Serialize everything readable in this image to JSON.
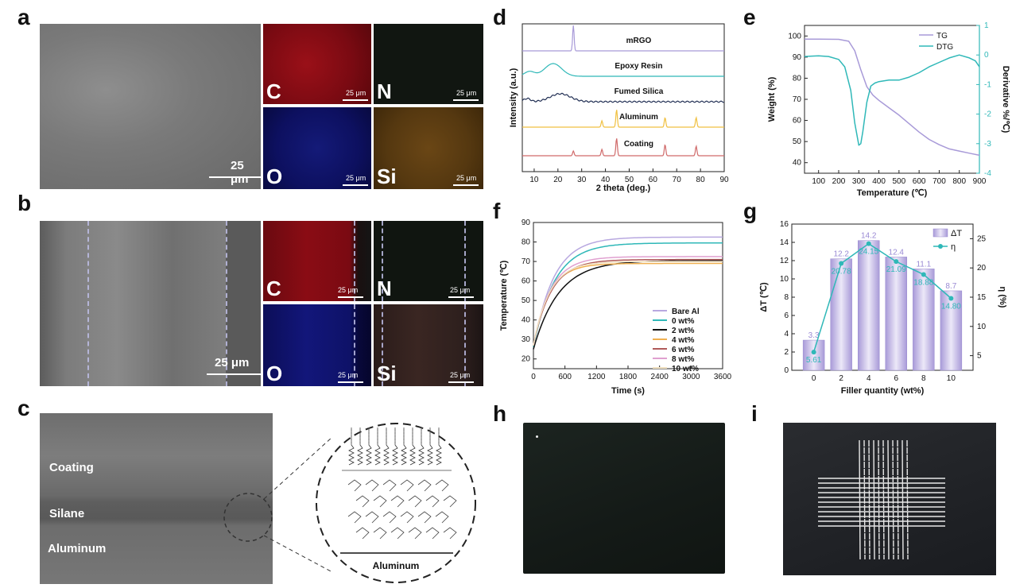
{
  "panel_labels": {
    "a": "a",
    "b": "b",
    "c": "c",
    "d": "d",
    "e": "e",
    "f": "f",
    "g": "g",
    "h": "h",
    "i": "i"
  },
  "colors": {
    "c_map": "#8a0a14",
    "n_map": "#0e140e",
    "o_map": "#0d1060",
    "si_map": "#5a3a12",
    "si_map_b": "#2a1c1a",
    "accent_teal": "#2fb8b8",
    "accent_purple": "#a89ad8"
  },
  "panel_a": {
    "scalebar": "25 μm",
    "maps": [
      {
        "element": "C",
        "scalebar": "25 μm"
      },
      {
        "element": "N",
        "scalebar": "25 μm"
      },
      {
        "element": "O",
        "scalebar": "25 μm"
      },
      {
        "element": "Si",
        "scalebar": "25 μm"
      }
    ]
  },
  "panel_b": {
    "scalebar": "25 μm",
    "maps": [
      {
        "element": "C",
        "scalebar": "25 μm"
      },
      {
        "element": "N",
        "scalebar": "25 μm"
      },
      {
        "element": "O",
        "scalebar": "25 μm"
      },
      {
        "element": "Si",
        "scalebar": "25 μm"
      }
    ]
  },
  "panel_c": {
    "layers": [
      "Coating",
      "Silane",
      "Aluminum"
    ],
    "schematic_label": "Aluminum"
  },
  "chart_data": [
    {
      "panel": "d",
      "type": "line",
      "xlabel": "2 theta (deg.)",
      "ylabel": "Intensity (a.u.)",
      "xlim": [
        5,
        90
      ],
      "xticks": [
        10,
        20,
        30,
        40,
        50,
        60,
        70,
        80,
        90
      ],
      "series": [
        {
          "name": "mRGO",
          "color": "#a89ad8",
          "peaks": [
            26.5
          ]
        },
        {
          "name": "Epoxy Resin",
          "color": "#2fb8b8",
          "peaks": []
        },
        {
          "name": "Fumed Silica",
          "color": "#1f2d52",
          "peaks": []
        },
        {
          "name": "Aluminum",
          "color": "#f0c040",
          "peaks": [
            38.5,
            44.7,
            65.1,
            78.2
          ]
        },
        {
          "name": "Coating",
          "color": "#d06a6a",
          "peaks": [
            26.5,
            38.5,
            44.7,
            65.1,
            78.2
          ]
        }
      ]
    },
    {
      "panel": "e",
      "type": "line",
      "xlabel": "Temperature (℃)",
      "ylabel": "Weight (%)",
      "y2label": "Derivative %/℃)",
      "xlim": [
        30,
        900
      ],
      "ylim": [
        35,
        105
      ],
      "y2lim": [
        -4,
        1
      ],
      "xticks": [
        100,
        200,
        300,
        400,
        500,
        600,
        700,
        800,
        900
      ],
      "yticks": [
        40,
        50,
        60,
        70,
        80,
        90,
        100
      ],
      "y2ticks": [
        -4,
        -3,
        -2,
        -1,
        0,
        1
      ],
      "series": [
        {
          "name": "TG",
          "axis": "left",
          "color": "#a89ad8",
          "x": [
            30,
            100,
            200,
            250,
            280,
            310,
            340,
            370,
            400,
            450,
            500,
            550,
            600,
            650,
            700,
            750,
            800,
            850,
            900
          ],
          "y": [
            98.5,
            98.5,
            98.4,
            97.5,
            93,
            84,
            76,
            72,
            69.5,
            66,
            62.5,
            58.5,
            54.5,
            51,
            48.5,
            46.5,
            45.5,
            44.5,
            43.5
          ]
        },
        {
          "name": "DTG",
          "axis": "right",
          "color": "#2fb8b8",
          "x": [
            30,
            100,
            150,
            200,
            230,
            260,
            280,
            300,
            310,
            320,
            340,
            360,
            380,
            400,
            450,
            500,
            550,
            600,
            650,
            700,
            750,
            800,
            850,
            880,
            900
          ],
          "y": [
            -0.05,
            -0.03,
            -0.05,
            -0.15,
            -0.4,
            -1.2,
            -2.3,
            -3.05,
            -3.0,
            -2.6,
            -1.6,
            -1.05,
            -0.95,
            -0.9,
            -0.85,
            -0.85,
            -0.75,
            -0.6,
            -0.4,
            -0.25,
            -0.1,
            0.0,
            -0.1,
            -0.2,
            -0.4
          ]
        }
      ]
    },
    {
      "panel": "f",
      "type": "line",
      "xlabel": "Time (s)",
      "ylabel": "Temperature (℃)",
      "xlim": [
        0,
        3600
      ],
      "ylim": [
        15,
        90
      ],
      "xticks": [
        0,
        600,
        1200,
        1800,
        2400,
        3000,
        3600
      ],
      "yticks": [
        20,
        30,
        40,
        50,
        60,
        70,
        80,
        90
      ],
      "series": [
        {
          "name": "Bare Al",
          "color": "#b8a8e0",
          "start": 25,
          "final": 82.5,
          "tau": 380
        },
        {
          "name": "0 wt%",
          "color": "#2fb8b8",
          "start": 26,
          "final": 79.5,
          "tau": 400
        },
        {
          "name": "2 wt%",
          "color": "#111111",
          "start": 25,
          "final": 70.5,
          "tau": 480
        },
        {
          "name": "4 wt%",
          "color": "#f0b050",
          "start": 27,
          "final": 69,
          "tau": 300
        },
        {
          "name": "6 wt%",
          "color": "#b05a5a",
          "start": 27,
          "final": 71,
          "tau": 340
        },
        {
          "name": "8 wt%",
          "color": "#e0a0d0",
          "start": 27,
          "final": 72.5,
          "tau": 330
        },
        {
          "name": "10 wt%",
          "color": "#f0e0c0",
          "start": 27,
          "final": 70,
          "tau": 310
        }
      ]
    },
    {
      "panel": "g",
      "type": "bar",
      "xlabel": "Filler quantity (wt%)",
      "ylabel": "ΔT (℃)",
      "y2label": "η (%)",
      "categories": [
        "0",
        "2",
        "4",
        "6",
        "8",
        "10"
      ],
      "ylim": [
        0,
        16
      ],
      "y2lim": [
        2.5,
        27.5
      ],
      "yticks": [
        0,
        2,
        4,
        6,
        8,
        10,
        12,
        14,
        16
      ],
      "y2ticks": [
        5,
        10,
        15,
        20,
        25
      ],
      "series": [
        {
          "name": "ΔT",
          "axis": "left",
          "values": [
            3.3,
            12.2,
            14.2,
            12.4,
            11.1,
            8.7
          ],
          "labels": [
            "3.3",
            "12.2",
            "14.2",
            "12.4",
            "11.1",
            "8.7"
          ]
        },
        {
          "name": "η",
          "axis": "right",
          "values": [
            5.61,
            20.78,
            24.15,
            21.09,
            18.88,
            14.8
          ],
          "labels": [
            "5.61",
            "20.78",
            "24.15",
            "21.09",
            "18.88",
            "14.80"
          ]
        }
      ]
    }
  ]
}
